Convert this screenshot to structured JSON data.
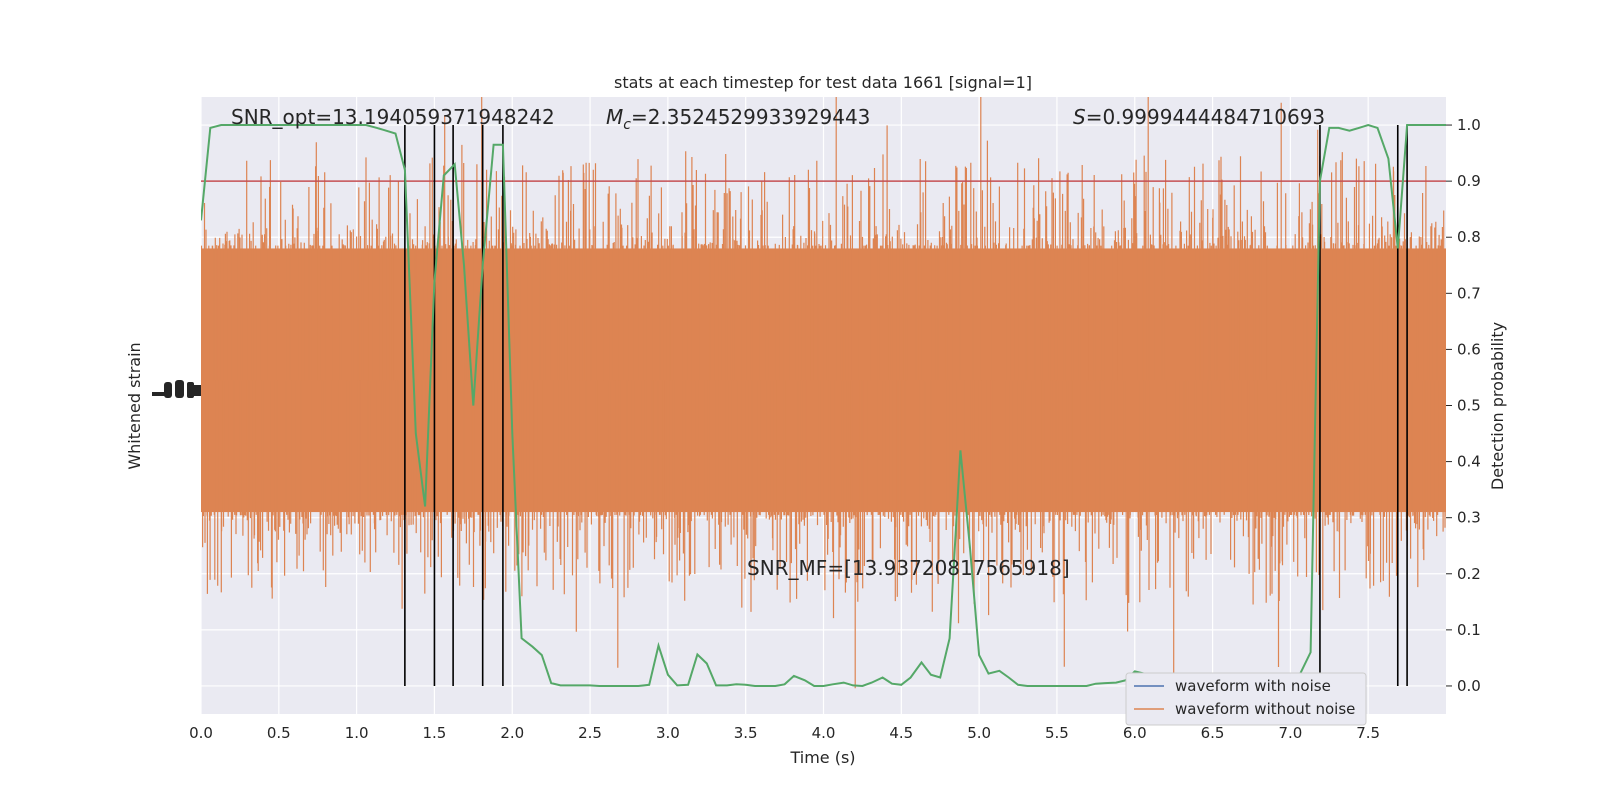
{
  "chart_data": {
    "type": "line",
    "title": "stats at each timestep for test data 1661 [signal=1]",
    "xlabel": "Time (s)",
    "ylabel_left": "Whitened strain",
    "ylabel_right": "Detection probability",
    "xlim": [
      0,
      8.0
    ],
    "ylim_right": [
      -0.05,
      1.05
    ],
    "x_ticks": [
      "0.0",
      "0.5",
      "1.0",
      "1.5",
      "2.0",
      "2.5",
      "3.0",
      "3.5",
      "4.0",
      "4.5",
      "5.0",
      "5.5",
      "6.0",
      "6.5",
      "7.0",
      "7.5"
    ],
    "x_tick_values": [
      0,
      0.5,
      1.0,
      1.5,
      2.0,
      2.5,
      3.0,
      3.5,
      4.0,
      4.5,
      5.0,
      5.5,
      6.0,
      6.5,
      7.0,
      7.5
    ],
    "y_ticks_right": [
      "0.0",
      "0.1",
      "0.2",
      "0.3",
      "0.4",
      "0.5",
      "0.6",
      "0.7",
      "0.8",
      "0.9",
      "1.0"
    ],
    "y_tick_values_right": [
      0,
      0.1,
      0.2,
      0.3,
      0.4,
      0.5,
      0.6,
      0.7,
      0.8,
      0.9,
      1.0
    ],
    "grid": true,
    "legend_position": "lower-right",
    "annotations": {
      "snr_opt": "SNR_opt=13.194059371948242",
      "mc_symbol": "M",
      "mc_sub": "c",
      "mc_value": "=2.3524529933929443",
      "s_symbol": "S",
      "s_value": "=0.9999444484710693",
      "snr_mf": "SNR_MF=[13.93720817565918]"
    },
    "threshold": 0.9,
    "detection_markers_x": [
      1.31,
      1.5,
      1.62,
      1.81,
      1.94,
      7.19,
      7.69,
      7.75
    ],
    "series": [
      {
        "name": "waveform with noise",
        "color": "#4c72b0"
      },
      {
        "name": "waveform without noise",
        "color": "#dd8452"
      }
    ],
    "probability": {
      "color": "#55a868",
      "x": [
        0.0,
        0.06,
        0.13,
        0.19,
        0.25,
        0.31,
        0.38,
        0.44,
        0.5,
        0.56,
        0.63,
        0.69,
        0.75,
        0.81,
        0.88,
        0.94,
        1.0,
        1.06,
        1.13,
        1.19,
        1.25,
        1.31,
        1.38,
        1.44,
        1.5,
        1.56,
        1.63,
        1.69,
        1.75,
        1.81,
        1.88,
        1.94,
        2.0,
        2.06,
        2.13,
        2.19,
        2.25,
        2.31,
        2.38,
        2.44,
        2.5,
        2.56,
        2.63,
        2.69,
        2.75,
        2.81,
        2.88,
        2.94,
        3.0,
        3.06,
        3.13,
        3.19,
        3.25,
        3.31,
        3.38,
        3.44,
        3.5,
        3.56,
        3.63,
        3.69,
        3.75,
        3.81,
        3.88,
        3.94,
        4.0,
        4.06,
        4.13,
        4.19,
        4.25,
        4.31,
        4.38,
        4.44,
        4.5,
        4.56,
        4.63,
        4.69,
        4.75,
        4.81,
        4.88,
        4.94,
        5.0,
        5.06,
        5.13,
        5.19,
        5.25,
        5.31,
        5.38,
        5.44,
        5.5,
        5.56,
        5.63,
        5.69,
        5.75,
        5.81,
        5.88,
        5.94,
        6.0,
        6.06,
        6.13,
        6.19,
        6.25,
        6.31,
        6.38,
        6.44,
        6.5,
        6.56,
        6.63,
        6.69,
        6.75,
        6.81,
        6.88,
        6.94,
        7.0,
        7.06,
        7.13,
        7.19,
        7.25,
        7.31,
        7.38,
        7.44,
        7.5,
        7.56,
        7.63,
        7.69,
        7.75,
        7.81,
        7.88,
        7.94,
        8.0
      ],
      "y": [
        0.83,
        0.995,
        1.0,
        1.0,
        1.0,
        1.0,
        1.0,
        1.0,
        1.0,
        1.0,
        1.0,
        1.0,
        1.0,
        1.0,
        1.0,
        1.0,
        1.0,
        1.0,
        0.995,
        0.99,
        0.985,
        0.92,
        0.45,
        0.32,
        0.72,
        0.91,
        0.93,
        0.75,
        0.5,
        0.75,
        0.965,
        0.965,
        0.45,
        0.085,
        0.07,
        0.055,
        0.005,
        0.001,
        0.001,
        0.001,
        0.001,
        0.0,
        0.0,
        0.0,
        0.0,
        0.0,
        0.002,
        0.072,
        0.02,
        0.001,
        0.002,
        0.056,
        0.04,
        0.001,
        0.001,
        0.003,
        0.002,
        0.0,
        0.0,
        0.0,
        0.003,
        0.018,
        0.01,
        0.0,
        0.0,
        0.003,
        0.006,
        0.001,
        0.0,
        0.006,
        0.015,
        0.004,
        0.002,
        0.015,
        0.042,
        0.02,
        0.015,
        0.085,
        0.42,
        0.25,
        0.055,
        0.022,
        0.027,
        0.015,
        0.002,
        0.0,
        0.0,
        0.0,
        0.0,
        0.0,
        0.0,
        0.0,
        0.004,
        0.005,
        0.006,
        0.01,
        0.026,
        0.022,
        0.01,
        0.005,
        0.01,
        0.005,
        0.003,
        0.004,
        0.005,
        0.005,
        0.01,
        0.02,
        0.01,
        0.003,
        0.003,
        0.005,
        0.005,
        0.02,
        0.06,
        0.9,
        0.995,
        0.995,
        0.99,
        0.995,
        1.0,
        0.995,
        0.94,
        0.78,
        1.0,
        1.0,
        1.0,
        1.0,
        1.0
      ]
    }
  }
}
